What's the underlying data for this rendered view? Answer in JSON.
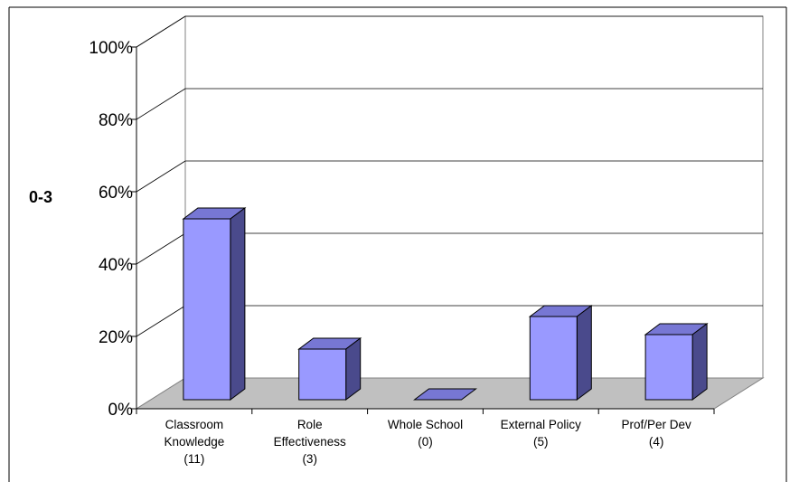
{
  "chart_data": {
    "type": "bar",
    "ylabel": "0-3",
    "xlabel": "",
    "title": "",
    "categories": [
      {
        "lines": [
          "Classroom",
          "Knowledge",
          "(11)"
        ]
      },
      {
        "lines": [
          "Role",
          "Effectiveness",
          "(3)"
        ]
      },
      {
        "lines": [
          "Whole School",
          "(0)"
        ]
      },
      {
        "lines": [
          "External Policy",
          "(5)"
        ]
      },
      {
        "lines": [
          "Prof/Per Dev",
          "(4)"
        ]
      }
    ],
    "values": [
      0.5,
      0.14,
      0.0,
      0.23,
      0.18
    ],
    "ylim": [
      0,
      1
    ],
    "yticks": [
      "0%",
      "20%",
      "40%",
      "60%",
      "80%",
      "100%"
    ],
    "grid": true,
    "legend": "none",
    "colors": {
      "bar_front": "#9999ff",
      "bar_side": "#4a4a8c",
      "bar_top": "#7777d4",
      "floor": "#c0c0c0",
      "gridline": "#000000"
    }
  }
}
